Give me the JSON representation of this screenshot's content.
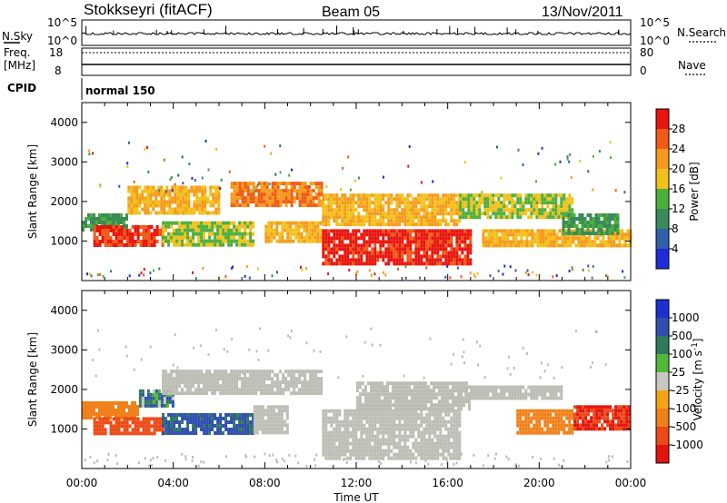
{
  "header": {
    "station": "Stokkseyri (fitACF)",
    "beam": "Beam 05",
    "date": "13/Nov/2011"
  },
  "status_panels": {
    "nsky_label": "N.Sky",
    "nsearch_label": "N.Search",
    "nsky_ticks": [
      "10^5",
      "10^0"
    ],
    "nsearch_ticks": [
      "10^5",
      "10^0"
    ],
    "freq_label_1": "Freq.",
    "freq_label_2": "[MHz]",
    "freq_ticks": [
      "18",
      "8"
    ],
    "nave_label": "Nave",
    "nave_ticks": [
      "80",
      "0"
    ],
    "cpid_label": "CPID",
    "cpid_value": "normal 150"
  },
  "colors": {
    "power_scale": [
      "#1e2bd6",
      "#2e5fa8",
      "#3a8a5a",
      "#4caf3c",
      "#f2c01a",
      "#f59a1c",
      "#f05a16",
      "#e8140e"
    ],
    "velocity_scale": [
      "#1c2fd0",
      "#2f4fb0",
      "#2e7a5c",
      "#52b83a",
      "#c8c8c0",
      "#f5a316",
      "#f0801a",
      "#ec4a16",
      "#e3140e"
    ],
    "ground_scatter": "#bdbdb5"
  },
  "chart_data": [
    {
      "type": "heatmap",
      "title": "Power",
      "ylabel": "Slant Range [km]",
      "xlabel": "Time UT",
      "x_ticks": [
        "00:00",
        "04:00",
        "08:00",
        "12:00",
        "16:00",
        "20:00",
        "00:00"
      ],
      "y_ticks": [
        "1000",
        "2000",
        "3000",
        "4000"
      ],
      "ylim": [
        0,
        4500
      ],
      "x_range_hours": [
        0,
        24
      ],
      "colorbar_label": "Power [dB]",
      "colorbar_ticks": [
        "4",
        "8",
        "12",
        "16",
        "20",
        "24",
        "28"
      ],
      "bands": [
        {
          "t0": 0.0,
          "t1": 2.0,
          "r0": 1250,
          "r1": 1700,
          "value": 12
        },
        {
          "t0": 0.5,
          "t1": 3.5,
          "r0": 900,
          "r1": 1400,
          "value": 28
        },
        {
          "t0": 2.0,
          "t1": 6.0,
          "r0": 1700,
          "r1": 2400,
          "value": 20
        },
        {
          "t0": 3.5,
          "t1": 7.5,
          "r0": 900,
          "r1": 1500,
          "value": 16
        },
        {
          "t0": 6.5,
          "t1": 10.5,
          "r0": 1900,
          "r1": 2500,
          "value": 24
        },
        {
          "t0": 8.0,
          "t1": 10.5,
          "r0": 1000,
          "r1": 1500,
          "value": 20
        },
        {
          "t0": 10.5,
          "t1": 17.0,
          "r0": 400,
          "r1": 1300,
          "value": 30
        },
        {
          "t0": 10.5,
          "t1": 16.5,
          "r0": 1400,
          "r1": 2200,
          "value": 20
        },
        {
          "t0": 16.5,
          "t1": 21.5,
          "r0": 1600,
          "r1": 2200,
          "value": 16
        },
        {
          "t0": 17.5,
          "t1": 24.0,
          "r0": 900,
          "r1": 1300,
          "value": 20
        },
        {
          "t0": 21.0,
          "t1": 23.5,
          "r0": 1200,
          "r1": 1700,
          "value": 12
        }
      ]
    },
    {
      "type": "heatmap",
      "title": "Velocity",
      "ylabel": "Slant Range [km]",
      "xlabel": "Time UT",
      "x_ticks": [
        "00:00",
        "04:00",
        "08:00",
        "12:00",
        "16:00",
        "20:00",
        "00:00"
      ],
      "y_ticks": [
        "1000",
        "2000",
        "3000",
        "4000"
      ],
      "ylim": [
        0,
        4500
      ],
      "x_range_hours": [
        0,
        24
      ],
      "colorbar_label": "Velocity [m s^-1]",
      "colorbar_ticks": [
        "1000",
        "500",
        "100",
        "25",
        "-25",
        "-100",
        "-500",
        "-1000"
      ],
      "bands": [
        {
          "t0": 0.0,
          "t1": 2.5,
          "r0": 1300,
          "r1": 1700,
          "value": -300
        },
        {
          "t0": 0.5,
          "t1": 3.5,
          "r0": 900,
          "r1": 1300,
          "value": -600
        },
        {
          "t0": 3.5,
          "t1": 7.5,
          "r0": 900,
          "r1": 1400,
          "value": 150
        },
        {
          "t0": 2.5,
          "t1": 4.0,
          "r0": 1600,
          "r1": 2000,
          "value": 80
        },
        {
          "t0": 3.5,
          "t1": 10.5,
          "r0": 1900,
          "r1": 2500,
          "value": 0
        },
        {
          "t0": 7.5,
          "t1": 9.0,
          "r0": 900,
          "r1": 1600,
          "value": 0
        },
        {
          "t0": 10.5,
          "t1": 16.5,
          "r0": 300,
          "r1": 1500,
          "value": 0
        },
        {
          "t0": 12.0,
          "t1": 17.0,
          "r0": 1500,
          "r1": 2200,
          "value": 0
        },
        {
          "t0": 16.5,
          "t1": 21.0,
          "r0": 1800,
          "r1": 2100,
          "value": 0
        },
        {
          "t0": 19.0,
          "t1": 21.5,
          "r0": 900,
          "r1": 1500,
          "value": -300
        },
        {
          "t0": 21.5,
          "t1": 24.0,
          "r0": 1000,
          "r1": 1600,
          "value": -800
        }
      ]
    }
  ]
}
